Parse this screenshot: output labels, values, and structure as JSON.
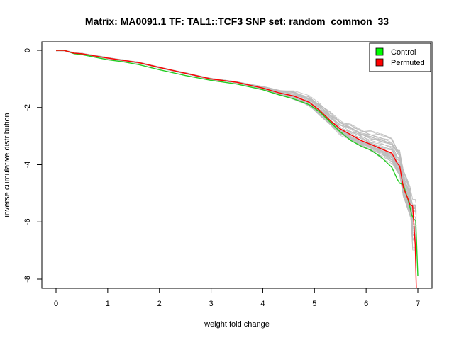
{
  "chart_data": {
    "type": "line",
    "title": "Matrix: MA0091.1 TF: TAL1::TCF3 SNP set: random_common_33",
    "xlabel": "weight fold change",
    "ylabel": "inverse cumulative distribution",
    "xlim": [
      0,
      7
    ],
    "ylim": [
      -8.2,
      0.1
    ],
    "x_ticks": [
      "0",
      "1",
      "2",
      "3",
      "4",
      "5",
      "6",
      "7"
    ],
    "y_ticks": [
      "0",
      "-2",
      "-4",
      "-6",
      "-8"
    ],
    "grid": false,
    "legend_position": "top-right",
    "legend": [
      {
        "label": "Control",
        "color": "#00ff00"
      },
      {
        "label": "Permuted",
        "color": "#ff0000"
      }
    ],
    "series": [
      {
        "name": "Control",
        "color": "#22cc22",
        "x": [
          0,
          0.15,
          0.25,
          0.35,
          0.5,
          0.7,
          1.0,
          1.3,
          1.6,
          2.0,
          2.5,
          3.0,
          3.5,
          4.0,
          4.3,
          4.6,
          4.9,
          5.1,
          5.3,
          5.5,
          5.7,
          5.9,
          6.1,
          6.3,
          6.5,
          6.6,
          6.65,
          6.72,
          6.8,
          6.85,
          6.88,
          6.92,
          6.96,
          7.0
        ],
        "y": [
          0,
          0,
          -0.05,
          -0.12,
          -0.15,
          -0.22,
          -0.33,
          -0.4,
          -0.5,
          -0.68,
          -0.88,
          -1.05,
          -1.18,
          -1.38,
          -1.55,
          -1.7,
          -1.9,
          -2.15,
          -2.5,
          -2.85,
          -3.15,
          -3.35,
          -3.5,
          -3.75,
          -4.1,
          -4.5,
          -4.65,
          -4.7,
          -5.15,
          -5.5,
          -5.75,
          -5.9,
          -5.95,
          -7.9
        ]
      },
      {
        "name": "Permuted",
        "color": "#ff0000",
        "x": [
          0,
          0.15,
          0.25,
          0.35,
          0.5,
          0.7,
          1.0,
          1.3,
          1.6,
          2.0,
          2.5,
          3.0,
          3.5,
          4.0,
          4.3,
          4.6,
          4.9,
          5.1,
          5.3,
          5.5,
          5.7,
          5.9,
          6.1,
          6.3,
          6.5,
          6.6,
          6.65,
          6.72,
          6.8,
          6.85,
          6.9,
          6.95,
          6.97
        ],
        "y": [
          0,
          0,
          -0.05,
          -0.1,
          -0.12,
          -0.18,
          -0.27,
          -0.35,
          -0.43,
          -0.6,
          -0.8,
          -1.0,
          -1.12,
          -1.32,
          -1.48,
          -1.6,
          -1.82,
          -2.1,
          -2.45,
          -2.75,
          -2.95,
          -3.15,
          -3.3,
          -3.45,
          -3.6,
          -3.95,
          -4.05,
          -4.8,
          -5.15,
          -5.4,
          -5.45,
          -6.8,
          -8.3
        ]
      }
    ]
  }
}
